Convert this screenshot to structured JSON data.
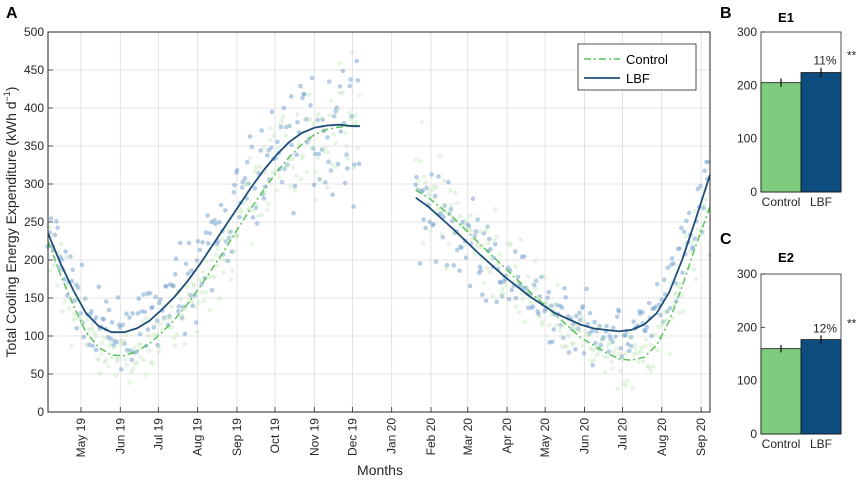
{
  "panel_labels": {
    "a": "A",
    "b": "B",
    "c": "C"
  },
  "chart_data": [
    {
      "type": "scatter",
      "panel": "A",
      "xlabel": "Months",
      "ylabel": "Total Cooling Energy Expenditure (kWh d",
      "ylabel_sup": "−1",
      "ylabel_end": ")",
      "ylim": [
        0,
        500
      ],
      "yticks": [
        0,
        50,
        100,
        150,
        200,
        250,
        300,
        350,
        400,
        450,
        500
      ],
      "xlim": [
        0,
        522
      ],
      "month_ticks": [
        {
          "label": "May 19",
          "x": 26
        },
        {
          "label": "Jun 19",
          "x": 57
        },
        {
          "label": "Jul 19",
          "x": 87
        },
        {
          "label": "Aug 19",
          "x": 118
        },
        {
          "label": "Sep 19",
          "x": 149
        },
        {
          "label": "Oct 19",
          "x": 179
        },
        {
          "label": "Nov 19",
          "x": 210
        },
        {
          "label": "Dec 19",
          "x": 240
        },
        {
          "label": "Jan 20",
          "x": 271
        },
        {
          "label": "Feb 20",
          "x": 302
        },
        {
          "label": "Mar 20",
          "x": 331
        },
        {
          "label": "Apr 20",
          "x": 362
        },
        {
          "label": "May 20",
          "x": 392
        },
        {
          "label": "Jun 20",
          "x": 423
        },
        {
          "label": "Jul 20",
          "x": 453
        },
        {
          "label": "Aug 20",
          "x": 484
        },
        {
          "label": "Sep 20",
          "x": 515
        }
      ],
      "grid": true,
      "legend": {
        "position": "top-right",
        "entries": [
          "Control",
          "LBF"
        ]
      },
      "series": [
        {
          "name": "Control",
          "style": "dash-dot",
          "color": "#5cc25c",
          "segments": [
            {
              "x": [
                0,
                10,
                20,
                30,
                40,
                50,
                60,
                70,
                80,
                90,
                100,
                110,
                120,
                130,
                140,
                150,
                160,
                170,
                180,
                190,
                200,
                210,
                220,
                230,
                240,
                246
              ],
              "y": [
                225,
                180,
                140,
                105,
                85,
                75,
                74,
                80,
                90,
                105,
                122,
                142,
                165,
                190,
                215,
                242,
                268,
                292,
                315,
                335,
                352,
                365,
                372,
                375,
                377,
                377
              ]
            },
            {
              "x": [
                290,
                300,
                320,
                340,
                360,
                380,
                400,
                420,
                430,
                440,
                450,
                460,
                470,
                480,
                490,
                500,
                510,
                522
              ],
              "y": [
                292,
                282,
                255,
                222,
                190,
                158,
                128,
                98,
                88,
                78,
                70,
                68,
                72,
                88,
                120,
                165,
                215,
                270
              ]
            }
          ]
        },
        {
          "name": "LBF",
          "style": "solid",
          "color": "#1f4e79",
          "segments": [
            {
              "x": [
                0,
                10,
                20,
                30,
                40,
                50,
                60,
                70,
                80,
                90,
                100,
                110,
                120,
                130,
                140,
                150,
                160,
                170,
                180,
                190,
                200,
                210,
                220,
                230,
                240,
                246
              ],
              "y": [
                235,
                195,
                160,
                130,
                113,
                105,
                105,
                110,
                120,
                135,
                152,
                172,
                195,
                220,
                245,
                270,
                295,
                318,
                338,
                355,
                367,
                374,
                377,
                378,
                376,
                376
              ]
            },
            {
              "x": [
                290,
                300,
                320,
                340,
                360,
                380,
                400,
                420,
                430,
                440,
                450,
                460,
                470,
                480,
                490,
                500,
                510,
                522
              ],
              "y": [
                282,
                270,
                240,
                208,
                178,
                152,
                130,
                115,
                110,
                108,
                106,
                108,
                115,
                130,
                158,
                200,
                250,
                312
              ]
            }
          ]
        }
      ]
    },
    {
      "type": "bar",
      "panel": "B",
      "title": "E1",
      "categories": [
        "Control",
        "LBF"
      ],
      "values": [
        205,
        224
      ],
      "errors": [
        8,
        9
      ],
      "colors": [
        "#7dcb7d",
        "#0d4c7f"
      ],
      "ylim": [
        0,
        300
      ],
      "yticks": [
        0,
        100,
        200,
        300
      ],
      "annotation": "11%",
      "significance": "**"
    },
    {
      "type": "bar",
      "panel": "C",
      "title": "E2",
      "categories": [
        "Control",
        "LBF"
      ],
      "values": [
        160,
        177
      ],
      "errors": [
        7,
        8
      ],
      "colors": [
        "#7dcb7d",
        "#0d4c7f"
      ],
      "ylim": [
        0,
        300
      ],
      "yticks": [
        0,
        100,
        200,
        300
      ],
      "annotation": "12%",
      "significance": "**"
    }
  ]
}
